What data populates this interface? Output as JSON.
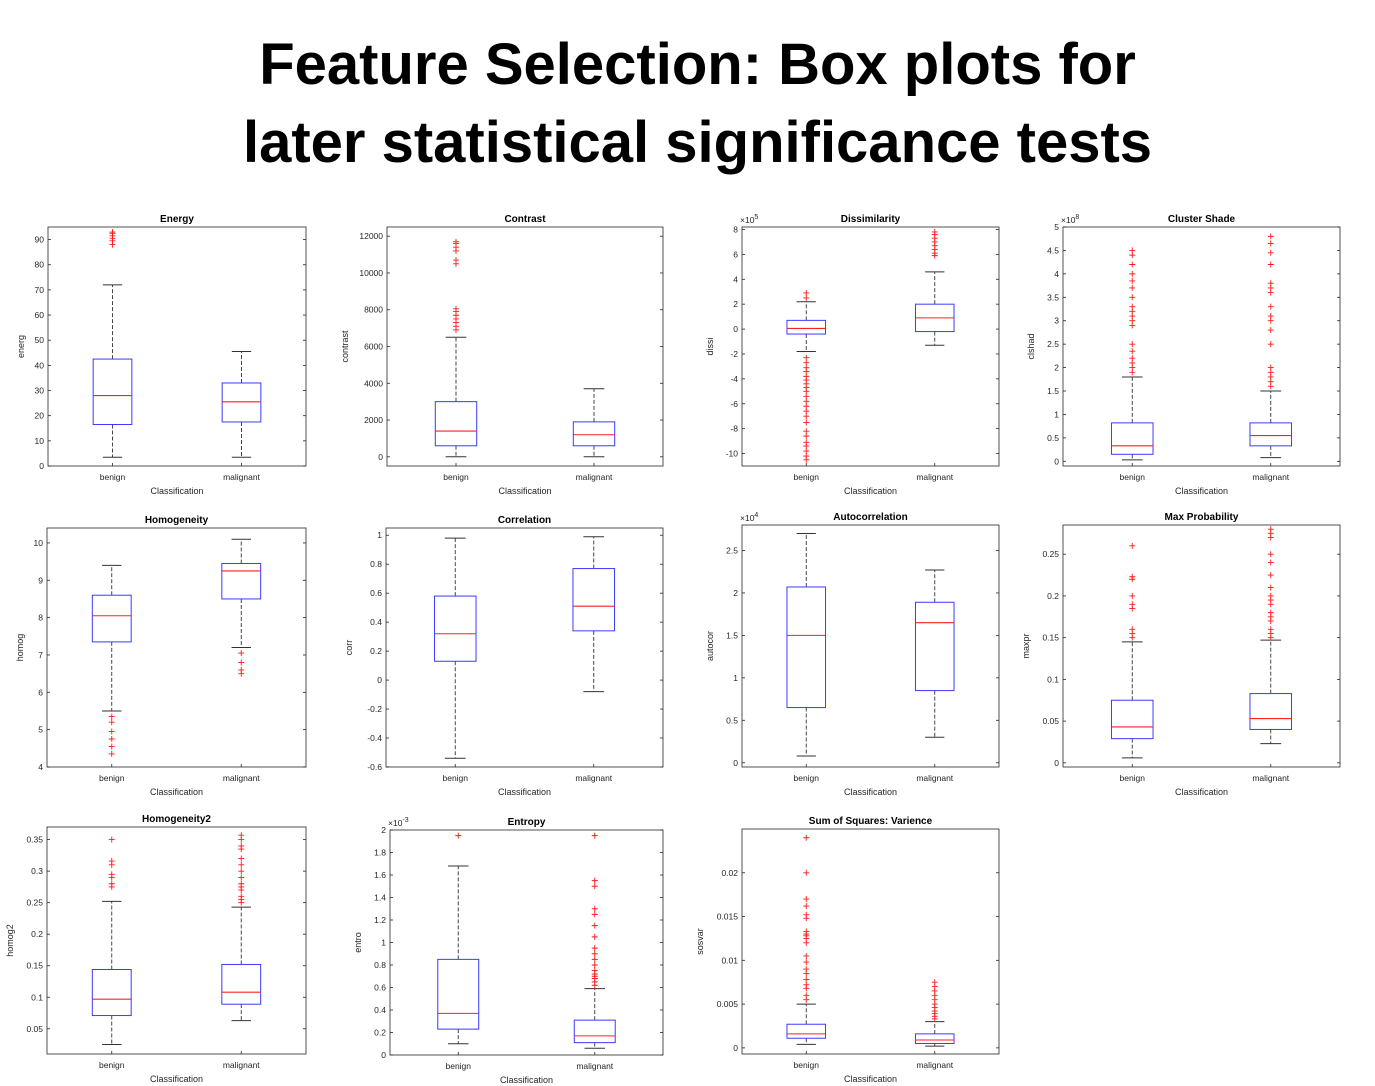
{
  "page": {
    "title_line1": "Feature Selection: Box plots for",
    "title_line2": "later statistical significance tests"
  },
  "colors": {
    "box": "#3b3bff",
    "median": "#ff2020",
    "whisker": "#333333",
    "outlier": "#ff1a1a",
    "axes": "#262626"
  },
  "chart_data": [
    {
      "type": "box",
      "title": "Energy",
      "xlabel": "Classification",
      "ylabel": "energ",
      "exponent": "",
      "ylim": [
        0,
        95
      ],
      "yticks": [
        0,
        10,
        20,
        30,
        40,
        50,
        60,
        70,
        80,
        90
      ],
      "yticklabels": [
        "0",
        "10",
        "20",
        "30",
        "40",
        "50",
        "60",
        "70",
        "80",
        "90"
      ],
      "categories": [
        "benign",
        "malignant"
      ],
      "boxes": [
        {
          "q1": 16.5,
          "median": 28,
          "q3": 42.5,
          "whisker_low": 3.5,
          "whisker_high": 72,
          "outliers": [
            88,
            89.5,
            90.5,
            91.5,
            92.5,
            93
          ]
        },
        {
          "q1": 17.5,
          "median": 25.5,
          "q3": 33,
          "whisker_low": 3.5,
          "whisker_high": 45.5,
          "outliers": []
        }
      ]
    },
    {
      "type": "box",
      "title": "Contrast",
      "xlabel": "Classification",
      "ylabel": "contrast",
      "exponent": "",
      "ylim": [
        -500,
        12500
      ],
      "yticks": [
        0,
        2000,
        4000,
        6000,
        8000,
        10000,
        12000
      ],
      "yticklabels": [
        "0",
        "2000",
        "4000",
        "6000",
        "8000",
        "10000",
        "12000"
      ],
      "categories": [
        "benign",
        "malignant"
      ],
      "boxes": [
        {
          "q1": 600,
          "median": 1400,
          "q3": 3000,
          "whisker_low": 0,
          "whisker_high": 6500,
          "outliers": [
            6900,
            7100,
            7300,
            7500,
            7700,
            7900,
            8050,
            10500,
            10700,
            11200,
            11400,
            11600,
            11700
          ]
        },
        {
          "q1": 600,
          "median": 1200,
          "q3": 1900,
          "whisker_low": 0,
          "whisker_high": 3700,
          "outliers": []
        }
      ]
    },
    {
      "type": "box",
      "title": "Dissimilarity",
      "xlabel": "Classification",
      "ylabel": "dissi",
      "exponent": "5",
      "ylim": [
        -11,
        8.2
      ],
      "yticks": [
        -10,
        -8,
        -6,
        -4,
        -2,
        0,
        2,
        4,
        6,
        8
      ],
      "yticklabels": [
        "-10",
        "-8",
        "-6",
        "-4",
        "-2",
        "0",
        "2",
        "4",
        "6",
        "8"
      ],
      "categories": [
        "benign",
        "malignant"
      ],
      "boxes": [
        {
          "q1": -0.4,
          "median": 0.05,
          "q3": 0.7,
          "whisker_low": -1.8,
          "whisker_high": 2.2,
          "outliers": [
            2.5,
            2.9,
            -2.3,
            -2.7,
            -3.1,
            -3.4,
            -3.8,
            -4.1,
            -4.4,
            -4.7,
            -5.0,
            -5.4,
            -5.8,
            -6.2,
            -6.6,
            -7.0,
            -7.5,
            -8.2,
            -8.6,
            -9.1,
            -9.4,
            -9.8,
            -10.2,
            -10.5
          ]
        },
        {
          "q1": -0.2,
          "median": 0.9,
          "q3": 2.0,
          "whisker_low": -1.3,
          "whisker_high": 4.6,
          "outliers": [
            5.9,
            6.1,
            6.4,
            6.7,
            7.0,
            7.3,
            7.6,
            7.8
          ]
        }
      ]
    },
    {
      "type": "box",
      "title": "Cluster Shade",
      "xlabel": "Classification",
      "ylabel": "clshad",
      "exponent": "8",
      "ylim": [
        -0.1,
        5
      ],
      "yticks": [
        0,
        0.5,
        1,
        1.5,
        2,
        2.5,
        3,
        3.5,
        4,
        4.5,
        5
      ],
      "yticklabels": [
        "0",
        "0.5",
        "1",
        "1.5",
        "2",
        "2.5",
        "3",
        "3.5",
        "4",
        "4.5",
        "5"
      ],
      "categories": [
        "benign",
        "malignant"
      ],
      "boxes": [
        {
          "q1": 0.15,
          "median": 0.33,
          "q3": 0.82,
          "whisker_low": 0.03,
          "whisker_high": 1.8,
          "outliers": [
            1.9,
            2.0,
            2.1,
            2.2,
            2.35,
            2.5,
            2.9,
            3.0,
            3.1,
            3.2,
            3.3,
            3.5,
            3.7,
            3.85,
            4.0,
            4.2,
            4.4,
            4.5
          ]
        },
        {
          "q1": 0.33,
          "median": 0.55,
          "q3": 0.82,
          "whisker_low": 0.08,
          "whisker_high": 1.5,
          "outliers": [
            1.6,
            1.7,
            1.8,
            1.9,
            2.0,
            2.5,
            2.8,
            3.0,
            3.1,
            3.3,
            3.6,
            3.7,
            3.8,
            4.2,
            4.45,
            4.65,
            4.8
          ]
        }
      ]
    },
    {
      "type": "box",
      "title": "Homogeneity",
      "xlabel": "Classification",
      "ylabel": "homog",
      "exponent": "",
      "ylim": [
        4,
        10.4
      ],
      "yticks": [
        4,
        5,
        6,
        7,
        8,
        9,
        10
      ],
      "yticklabels": [
        "4",
        "5",
        "6",
        "7",
        "8",
        "9",
        "10"
      ],
      "categories": [
        "benign",
        "malignant"
      ],
      "boxes": [
        {
          "q1": 7.35,
          "median": 8.05,
          "q3": 8.6,
          "whisker_low": 5.5,
          "whisker_high": 9.4,
          "outliers": [
            5.35,
            5.2,
            4.95,
            4.75,
            4.55,
            4.35
          ]
        },
        {
          "q1": 8.5,
          "median": 9.25,
          "q3": 9.45,
          "whisker_low": 7.2,
          "whisker_high": 10.1,
          "outliers": [
            7.05,
            6.8,
            6.6,
            6.5
          ]
        }
      ]
    },
    {
      "type": "box",
      "title": "Correlation",
      "xlabel": "Classification",
      "ylabel": "corr",
      "exponent": "",
      "ylim": [
        -0.6,
        1.05
      ],
      "yticks": [
        -0.6,
        -0.4,
        -0.2,
        0,
        0.2,
        0.4,
        0.6,
        0.8,
        1
      ],
      "yticklabels": [
        "-0.6",
        "-0.4",
        "-0.2",
        "0",
        "0.2",
        "0.4",
        "0.6",
        "0.8",
        "1"
      ],
      "categories": [
        "benign",
        "malignant"
      ],
      "boxes": [
        {
          "q1": 0.13,
          "median": 0.32,
          "q3": 0.58,
          "whisker_low": -0.54,
          "whisker_high": 0.98,
          "outliers": []
        },
        {
          "q1": 0.34,
          "median": 0.51,
          "q3": 0.77,
          "whisker_low": -0.08,
          "whisker_high": 0.99,
          "outliers": []
        }
      ]
    },
    {
      "type": "box",
      "title": "Autocorrelation",
      "xlabel": "Classification",
      "ylabel": "autocor",
      "exponent": "4",
      "ylim": [
        -0.05,
        2.8
      ],
      "yticks": [
        0,
        0.5,
        1,
        1.5,
        2,
        2.5
      ],
      "yticklabels": [
        "0",
        "0.5",
        "1",
        "1.5",
        "2",
        "2.5"
      ],
      "categories": [
        "benign",
        "malignant"
      ],
      "boxes": [
        {
          "q1": 0.65,
          "median": 1.5,
          "q3": 2.07,
          "whisker_low": 0.08,
          "whisker_high": 2.7,
          "outliers": []
        },
        {
          "q1": 0.85,
          "median": 1.65,
          "q3": 1.89,
          "whisker_low": 0.3,
          "whisker_high": 2.27,
          "outliers": []
        }
      ]
    },
    {
      "type": "box",
      "title": "Max Probability",
      "xlabel": "Classification",
      "ylabel": "maxpr",
      "exponent": "",
      "ylim": [
        -0.005,
        0.285
      ],
      "yticks": [
        0,
        0.05,
        0.1,
        0.15,
        0.2,
        0.25
      ],
      "yticklabels": [
        "0",
        "0.05",
        "0.1",
        "0.15",
        "0.2",
        "0.25"
      ],
      "categories": [
        "benign",
        "malignant"
      ],
      "boxes": [
        {
          "q1": 0.029,
          "median": 0.043,
          "q3": 0.075,
          "whisker_low": 0.006,
          "whisker_high": 0.145,
          "outliers": [
            0.15,
            0.155,
            0.16,
            0.185,
            0.19,
            0.2,
            0.22,
            0.223,
            0.26
          ]
        },
        {
          "q1": 0.04,
          "median": 0.053,
          "q3": 0.083,
          "whisker_low": 0.023,
          "whisker_high": 0.147,
          "outliers": [
            0.15,
            0.155,
            0.16,
            0.17,
            0.175,
            0.18,
            0.19,
            0.195,
            0.2,
            0.21,
            0.225,
            0.24,
            0.25,
            0.27,
            0.275,
            0.28
          ]
        }
      ]
    },
    {
      "type": "box",
      "title": "Homogeneity2",
      "xlabel": "Classification",
      "ylabel": "homog2",
      "exponent": "",
      "ylim": [
        0.01,
        0.37
      ],
      "yticks": [
        0.05,
        0.1,
        0.15,
        0.2,
        0.25,
        0.3,
        0.35
      ],
      "yticklabels": [
        "0.05",
        "0.1",
        "0.15",
        "0.2",
        "0.25",
        "0.3",
        "0.35"
      ],
      "categories": [
        "benign",
        "malignant"
      ],
      "boxes": [
        {
          "q1": 0.071,
          "median": 0.097,
          "q3": 0.144,
          "whisker_low": 0.025,
          "whisker_high": 0.252,
          "outliers": [
            0.275,
            0.28,
            0.29,
            0.295,
            0.31,
            0.316,
            0.35
          ]
        },
        {
          "q1": 0.089,
          "median": 0.108,
          "q3": 0.152,
          "whisker_low": 0.063,
          "whisker_high": 0.243,
          "outliers": [
            0.25,
            0.255,
            0.26,
            0.27,
            0.275,
            0.28,
            0.29,
            0.3,
            0.31,
            0.32,
            0.335,
            0.34,
            0.35,
            0.357
          ]
        }
      ]
    },
    {
      "type": "box",
      "title": "Entropy",
      "xlabel": "Classification",
      "ylabel": "entro",
      "exponent": "-3",
      "ylim": [
        0,
        2
      ],
      "yticks": [
        0,
        0.2,
        0.4,
        0.6,
        0.8,
        1,
        1.2,
        1.4,
        1.6,
        1.8,
        2
      ],
      "yticklabels": [
        "0",
        "0.2",
        "0.4",
        "0.6",
        "0.8",
        "1",
        "1.2",
        "1.4",
        "1.6",
        "1.8",
        "2"
      ],
      "categories": [
        "benign",
        "malignant"
      ],
      "boxes": [
        {
          "q1": 0.23,
          "median": 0.37,
          "q3": 0.85,
          "whisker_low": 0.1,
          "whisker_high": 1.68,
          "outliers": [
            1.95
          ]
        },
        {
          "q1": 0.11,
          "median": 0.17,
          "q3": 0.31,
          "whisker_low": 0.06,
          "whisker_high": 0.59,
          "outliers": [
            0.62,
            0.65,
            0.68,
            0.7,
            0.72,
            0.75,
            0.8,
            0.85,
            0.9,
            0.95,
            1.05,
            1.15,
            1.25,
            1.3,
            1.5,
            1.55,
            1.95
          ]
        }
      ]
    },
    {
      "type": "box",
      "title": "Sum of Squares: Varience",
      "xlabel": "Classification",
      "ylabel": "sosvar",
      "exponent": "",
      "ylim": [
        -0.0007,
        0.025
      ],
      "yticks": [
        0,
        0.005,
        0.01,
        0.015,
        0.02
      ],
      "yticklabels": [
        "0",
        "0.005",
        "0.01",
        "0.015",
        "0.02"
      ],
      "categories": [
        "benign",
        "malignant"
      ],
      "boxes": [
        {
          "q1": 0.0011,
          "median": 0.0016,
          "q3": 0.0027,
          "whisker_low": 0.0004,
          "whisker_high": 0.005,
          "outliers": [
            0.0055,
            0.006,
            0.0068,
            0.0072,
            0.0078,
            0.0085,
            0.009,
            0.0098,
            0.0105,
            0.012,
            0.0125,
            0.0128,
            0.013,
            0.0133,
            0.0148,
            0.0152,
            0.0162,
            0.017,
            0.02,
            0.024
          ]
        },
        {
          "q1": 0.0005,
          "median": 0.0009,
          "q3": 0.0016,
          "whisker_low": 0.0002,
          "whisker_high": 0.003,
          "outliers": [
            0.0033,
            0.0036,
            0.0039,
            0.0042,
            0.0046,
            0.005,
            0.0055,
            0.006,
            0.0065,
            0.007,
            0.0075
          ]
        }
      ]
    }
  ]
}
